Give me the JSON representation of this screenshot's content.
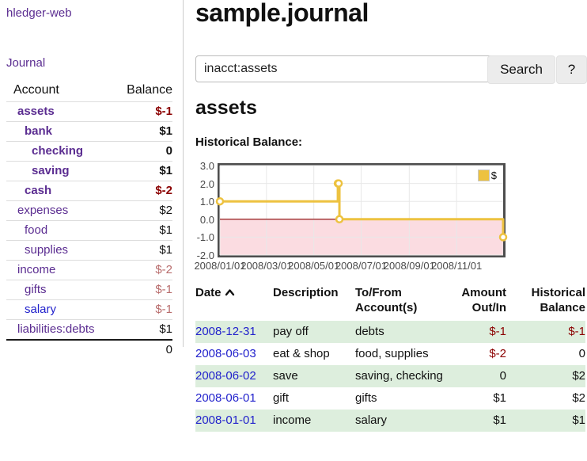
{
  "colors": {
    "link_purple": "#5b2d91",
    "link_blue": "#2222cc",
    "negative_strong": "#8b0000",
    "negative_muted": "#b86c6c",
    "row_green": "#ddeedd",
    "chart_line": "#edc240",
    "chart_negative_fill": "#fbdce1",
    "chart_zero_line": "#8b0000",
    "chart_grid": "#e8e8e8",
    "chart_border": "#4d4d4d"
  },
  "sidebar": {
    "app_title": "hledger-web",
    "journal_link": "Journal",
    "accounts_table": {
      "headers": {
        "account": "Account",
        "balance": "Balance"
      },
      "rows": [
        {
          "name": "assets",
          "balance": "$-1",
          "indent": 0,
          "bold": true,
          "balance_class": "neg-strong",
          "link_blue": false
        },
        {
          "name": "bank",
          "balance": "$1",
          "indent": 1,
          "bold": true,
          "balance_class": "",
          "link_blue": false
        },
        {
          "name": "checking",
          "balance": "0",
          "indent": 2,
          "bold": true,
          "balance_class": "",
          "link_blue": false
        },
        {
          "name": "saving",
          "balance": "$1",
          "indent": 2,
          "bold": true,
          "balance_class": "",
          "link_blue": false
        },
        {
          "name": "cash",
          "balance": "$-2",
          "indent": 1,
          "bold": true,
          "balance_class": "neg-strong",
          "link_blue": false
        },
        {
          "name": "expenses",
          "balance": "$2",
          "indent": 0,
          "bold": false,
          "balance_class": "",
          "link_blue": false
        },
        {
          "name": "food",
          "balance": "$1",
          "indent": 1,
          "bold": false,
          "balance_class": "",
          "link_blue": false
        },
        {
          "name": "supplies",
          "balance": "$1",
          "indent": 1,
          "bold": false,
          "balance_class": "",
          "link_blue": false
        },
        {
          "name": "income",
          "balance": "$-2",
          "indent": 0,
          "bold": false,
          "balance_class": "neg-muted",
          "link_blue": false
        },
        {
          "name": "gifts",
          "balance": "$-1",
          "indent": 1,
          "bold": false,
          "balance_class": "neg-muted",
          "link_blue": false
        },
        {
          "name": "salary",
          "balance": "$-1",
          "indent": 1,
          "bold": false,
          "balance_class": "neg-muted",
          "link_blue": true
        },
        {
          "name": "liabilities:debts",
          "balance": "$1",
          "indent": 0,
          "bold": false,
          "balance_class": "",
          "link_blue": false
        }
      ],
      "total": "0"
    }
  },
  "main": {
    "title": "sample.journal",
    "search": {
      "value": "inacct:assets",
      "clear_icon": "×",
      "button_label": "Search",
      "help_label": "?"
    },
    "account_heading": "assets",
    "chart_label": "Historical Balance:"
  },
  "chart_data": {
    "type": "line",
    "step": true,
    "title": "Historical Balance",
    "legend": {
      "label": "$",
      "position": "top-right"
    },
    "x_range": [
      "2008-01-01",
      "2008-12-31"
    ],
    "ylim": [
      -2.0,
      3.0
    ],
    "yticks": [
      3.0,
      2.0,
      1.0,
      0.0,
      -1.0,
      -2.0
    ],
    "xticks": [
      {
        "date": "2008-01-01",
        "label": "2008/01/01"
      },
      {
        "date": "2008-03-01",
        "label": "2008/03/01"
      },
      {
        "date": "2008-05-01",
        "label": "2008/05/01"
      },
      {
        "date": "2008-07-01",
        "label": "2008/07/01"
      },
      {
        "date": "2008-09-01",
        "label": "2008/09/01"
      },
      {
        "date": "2008-11-01",
        "label": "2008/11/01"
      }
    ],
    "series": [
      {
        "name": "$",
        "points": [
          {
            "date": "2008-01-01",
            "value": 1
          },
          {
            "date": "2008-06-01",
            "value": 2
          },
          {
            "date": "2008-06-02",
            "value": 2
          },
          {
            "date": "2008-06-03",
            "value": 0
          },
          {
            "date": "2008-12-31",
            "value": -1
          }
        ]
      }
    ],
    "grid": true,
    "negative_region_shaded": true
  },
  "register_table": {
    "headers": {
      "date": "Date",
      "date_sort": "asc",
      "description": "Description",
      "accounts": "To/From Account(s)",
      "amount": "Amount Out/In",
      "balance": "Historical Balance"
    },
    "rows": [
      {
        "date": "2008-12-31",
        "description": "pay off",
        "accounts": "debts",
        "amount": "$-1",
        "amount_neg": true,
        "balance": "$-1",
        "balance_neg": true
      },
      {
        "date": "2008-06-03",
        "description": "eat & shop",
        "accounts": "food, supplies",
        "amount": "$-2",
        "amount_neg": true,
        "balance": "0",
        "balance_neg": false
      },
      {
        "date": "2008-06-02",
        "description": "save",
        "accounts": "saving, checking",
        "amount": "0",
        "amount_neg": false,
        "balance": "$2",
        "balance_neg": false
      },
      {
        "date": "2008-06-01",
        "description": "gift",
        "accounts": "gifts",
        "amount": "$1",
        "amount_neg": false,
        "balance": "$2",
        "balance_neg": false
      },
      {
        "date": "2008-01-01",
        "description": "income",
        "accounts": "salary",
        "amount": "$1",
        "amount_neg": false,
        "balance": "$1",
        "balance_neg": false
      }
    ]
  }
}
